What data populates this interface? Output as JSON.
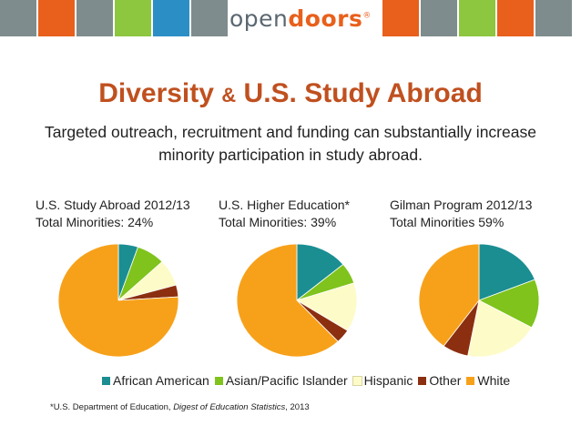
{
  "header": {
    "logo_light": "open",
    "logo_bold": "doors",
    "logo_mark": "®",
    "tile_colors": [
      "#7f8c8d",
      "#e8601c",
      "#7f8c8d",
      "#8dc63f",
      "#2b8fc6",
      "#7f8c8d",
      "#e8601c",
      "#7f8c8d",
      "#8dc63f",
      "#e8601c",
      "#7f8c8d",
      "#8dc63f",
      "#2b8fc6",
      "#e8601c",
      "#7f8c8d",
      "#8dc63f"
    ]
  },
  "slide": {
    "title_a": "Diversity",
    "title_amp": "&",
    "title_b": "U.S. Study Abroad",
    "subtitle_line1": "Targeted outreach, recruitment and funding can substantially increase",
    "subtitle_line2": "minority participation in study abroad.",
    "footnote_prefix": "*U.S. Department of Education, ",
    "footnote_italic": "Digest of Education Statistics",
    "footnote_suffix": ", 2013"
  },
  "colors": {
    "African American": "#1b8e92",
    "Asian/Pacific Islander": "#7fc31c",
    "Hispanic": "#fdfbc8",
    "Other": "#8b2f10",
    "White": "#f7a11a"
  },
  "chart_data": [
    {
      "type": "pie",
      "title_line1": "U.S. Study Abroad 2012/13",
      "title_line2": "Total Minorities: 24%",
      "categories": [
        "African American",
        "Asian/Pacific Islander",
        "Hispanic",
        "Other",
        "White"
      ],
      "values": [
        5.3,
        7.7,
        7.6,
        3.4,
        76.0
      ]
    },
    {
      "type": "pie",
      "title_line1": "U.S. Higher Education*",
      "title_line2": "Total Minorities: 39%",
      "categories": [
        "African American",
        "Asian/Pacific Islander",
        "Hispanic",
        "Other",
        "White"
      ],
      "values": [
        14,
        6,
        14,
        4,
        62
      ]
    },
    {
      "type": "pie",
      "title_line1": "Gilman Program 2012/13",
      "title_line2": "Total Minorities 59%",
      "categories": [
        "African American",
        "Asian/Pacific Islander",
        "Hispanic",
        "Other",
        "White"
      ],
      "values": [
        19,
        14,
        20,
        7,
        40
      ]
    }
  ],
  "legend": [
    "African American",
    "Asian/Pacific Islander",
    "Hispanic",
    "Other",
    "White"
  ]
}
